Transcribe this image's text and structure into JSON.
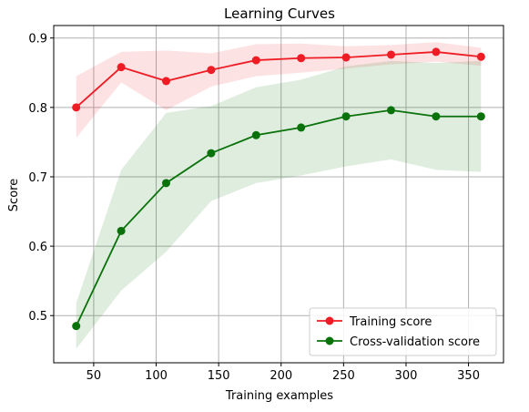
{
  "chart_data": {
    "type": "line",
    "title": "Learning Curves",
    "xlabel": "Training examples",
    "ylabel": "Score",
    "xlim": [
      18,
      378
    ],
    "ylim": [
      0.432,
      0.918
    ],
    "xticks": [
      50,
      100,
      150,
      200,
      250,
      300,
      350
    ],
    "yticks": [
      0.5,
      0.6,
      0.7,
      0.8,
      0.9
    ],
    "grid": true,
    "legend_position": "lower-right",
    "x": [
      36,
      72,
      108,
      144,
      180,
      216,
      252,
      288,
      324,
      360
    ],
    "series": [
      {
        "name": "Training score",
        "color": "#ee1c25",
        "values": [
          0.8,
          0.858,
          0.838,
          0.854,
          0.868,
          0.871,
          0.872,
          0.876,
          0.88,
          0.873
        ],
        "band_lower": [
          0.756,
          0.836,
          0.796,
          0.83,
          0.845,
          0.85,
          0.856,
          0.862,
          0.866,
          0.86
        ],
        "band_upper": [
          0.845,
          0.88,
          0.882,
          0.878,
          0.891,
          0.892,
          0.888,
          0.89,
          0.894,
          0.886
        ]
      },
      {
        "name": "Cross-validation score",
        "color": "#0a720a",
        "values": [
          0.485,
          0.622,
          0.691,
          0.734,
          0.76,
          0.771,
          0.787,
          0.796,
          0.787,
          0.787
        ],
        "band_lower": [
          0.452,
          0.536,
          0.592,
          0.665,
          0.691,
          0.702,
          0.715,
          0.725,
          0.71,
          0.707
        ],
        "band_upper": [
          0.518,
          0.71,
          0.792,
          0.802,
          0.829,
          0.84,
          0.859,
          0.867,
          0.864,
          0.867
        ]
      }
    ]
  }
}
